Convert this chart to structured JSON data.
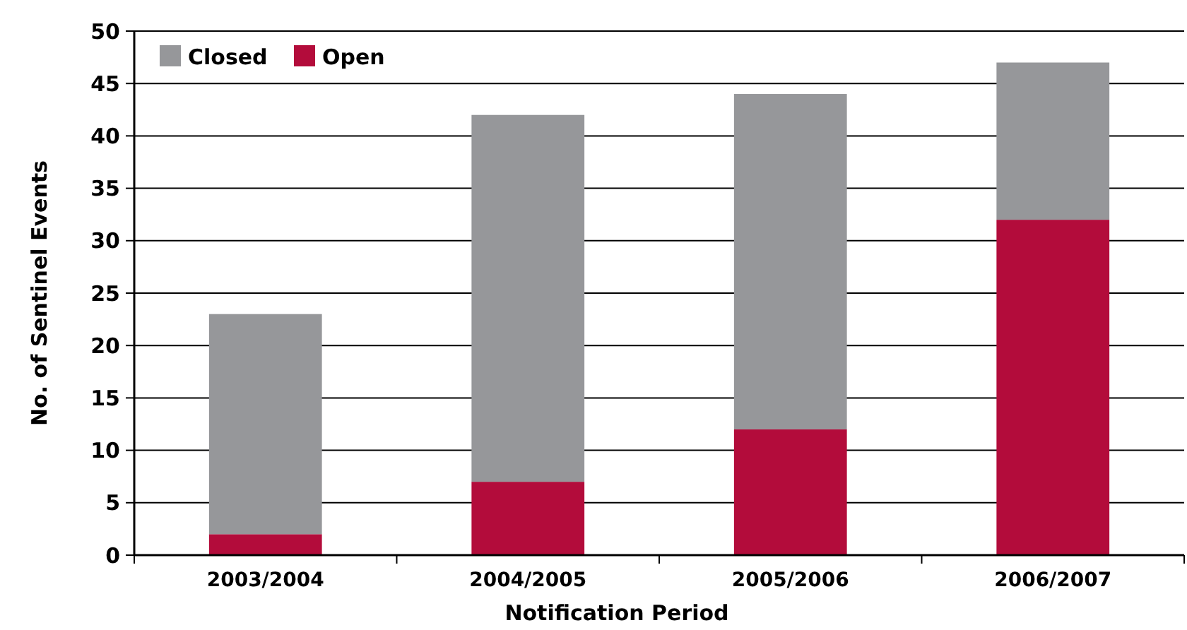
{
  "chart_data": {
    "type": "bar",
    "stacked": true,
    "xlabel": "Notification Period",
    "ylabel": "No. of Sentinel Events",
    "categories": [
      "2003/2004",
      "2004/2005",
      "2005/2006",
      "2006/2007"
    ],
    "series": [
      {
        "name": "Open",
        "color": "#b30c3b",
        "values": [
          2,
          7,
          12,
          32
        ]
      },
      {
        "name": "Closed",
        "color": "#96979a",
        "values": [
          21,
          35,
          32,
          15
        ]
      }
    ],
    "ylim": [
      0,
      50
    ],
    "yticks": [
      0,
      5,
      10,
      15,
      20,
      25,
      30,
      35,
      40,
      45,
      50
    ],
    "grid": "y",
    "legend": "top left"
  }
}
